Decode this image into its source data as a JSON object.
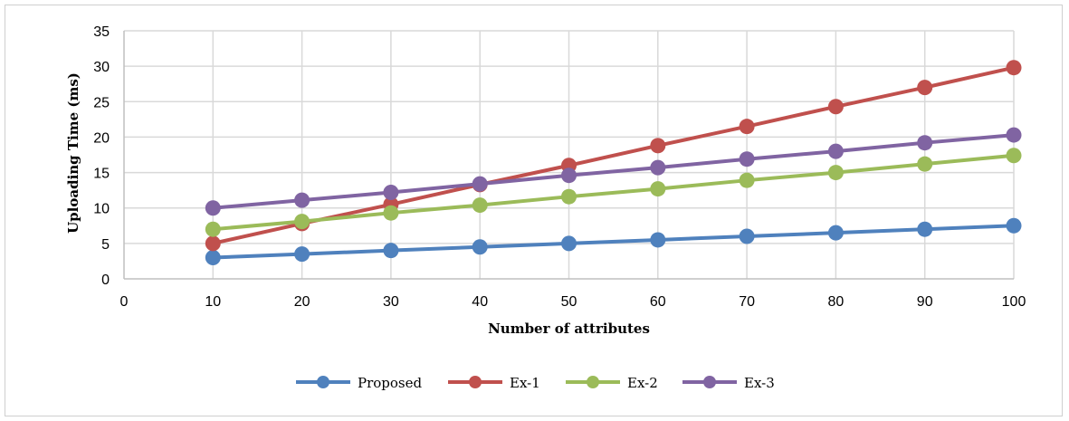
{
  "chart_data": {
    "type": "line",
    "title": "",
    "xlabel": "Number of attributes",
    "ylabel": "Uploading Time (ms)",
    "xlim": [
      0,
      100
    ],
    "ylim": [
      0,
      35
    ],
    "x_ticks": [
      "0",
      "10",
      "20",
      "30",
      "40",
      "50",
      "60",
      "70",
      "80",
      "90",
      "100"
    ],
    "y_ticks": [
      "0",
      "5",
      "10",
      "15",
      "20",
      "25",
      "30",
      "35"
    ],
    "grid": true,
    "legend_position": "bottom",
    "x": [
      10,
      20,
      30,
      40,
      50,
      60,
      70,
      80,
      90,
      100
    ],
    "series": [
      {
        "name": "Proposed",
        "color": "#4f81bd",
        "values": [
          3.0,
          3.5,
          4.0,
          4.5,
          5.0,
          5.5,
          6.0,
          6.5,
          7.0,
          7.5
        ]
      },
      {
        "name": "Ex-1",
        "color": "#c0504d",
        "values": [
          5.0,
          7.8,
          10.5,
          13.3,
          16.0,
          18.8,
          21.5,
          24.3,
          27.0,
          29.8
        ]
      },
      {
        "name": "Ex-2",
        "color": "#9bbb59",
        "values": [
          7.0,
          8.1,
          9.3,
          10.4,
          11.6,
          12.7,
          13.9,
          15.0,
          16.2,
          17.4
        ]
      },
      {
        "name": "Ex-3",
        "color": "#8064a2",
        "values": [
          10.0,
          11.1,
          12.2,
          13.4,
          14.6,
          15.7,
          16.9,
          18.0,
          19.2,
          20.3
        ]
      }
    ]
  }
}
